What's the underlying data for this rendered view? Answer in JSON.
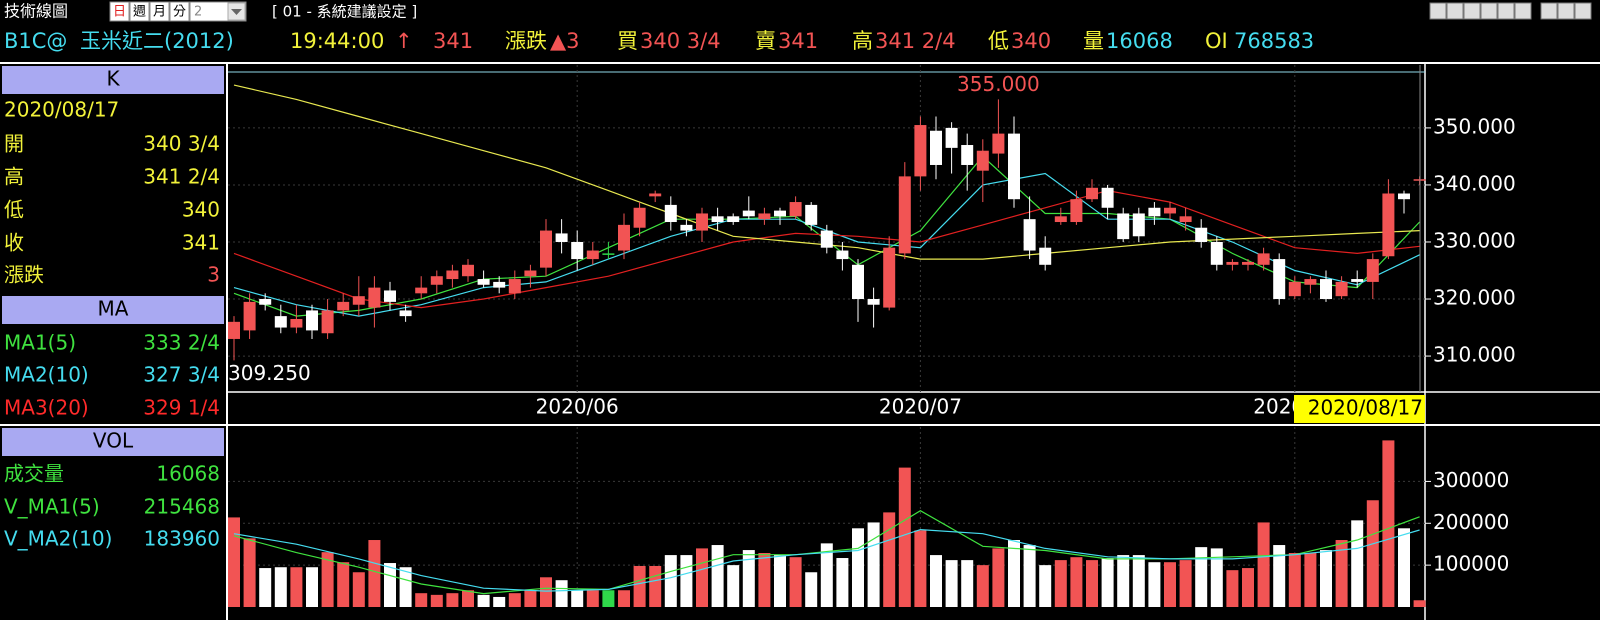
{
  "header": {
    "title": "技術線圖",
    "periods": [
      "日",
      "週",
      "月",
      "分"
    ],
    "period_count": "2",
    "settings": "[ 01 - 系統建議設定 ]"
  },
  "quote": {
    "symbol": "B1C@",
    "name": "玉米近二(2012)",
    "time": "19:44:00",
    "arrow": "↑",
    "last": "341",
    "change_label": "漲跌",
    "change": "▲3",
    "bid_label": "買",
    "bid": "340 3/4",
    "ask_label": "賣",
    "ask": "341",
    "high_label": "高",
    "high": "341 2/4",
    "low_label": "低",
    "low": "340",
    "volume_label": "量",
    "volume": "16068",
    "oi_label": "OI",
    "oi": "768583"
  },
  "panel": {
    "k": {
      "header": "K",
      "date": "2020/08/17",
      "rows": [
        [
          "開",
          "340 3/4"
        ],
        [
          "高",
          "341 2/4"
        ],
        [
          "低",
          "340"
        ],
        [
          "收",
          "341"
        ],
        [
          "漲跌",
          "3"
        ]
      ]
    },
    "ma": {
      "header": "MA",
      "rows": [
        [
          "MA1(5)",
          "333 2/4"
        ],
        [
          "MA2(10)",
          "327 3/4"
        ],
        [
          "MA3(20)",
          "329 1/4"
        ]
      ]
    },
    "vol": {
      "header": "VOL",
      "rows": [
        [
          "成交量",
          "16068"
        ],
        [
          "V_MA1(5)",
          "215468"
        ],
        [
          "V_MA2(10)",
          "183960"
        ]
      ]
    }
  },
  "chart_data": [
    {
      "type": "candlestick",
      "categories": [
        null,
        null,
        null,
        null,
        null,
        null,
        null,
        null,
        null,
        null,
        null,
        null,
        null,
        null,
        null,
        null,
        null,
        null,
        null,
        null,
        null,
        null,
        "2020/06",
        null,
        null,
        null,
        null,
        null,
        null,
        null,
        null,
        null,
        null,
        null,
        null,
        null,
        null,
        null,
        null,
        null,
        null,
        null,
        null,
        null,
        "2020/07",
        null,
        null,
        null,
        null,
        null,
        null,
        null,
        null,
        null,
        null,
        null,
        null,
        null,
        null,
        null,
        null,
        null,
        null,
        null,
        null,
        null,
        null,
        null,
        "2020/08",
        null,
        null,
        null,
        null,
        null,
        null,
        null,
        null
      ],
      "open": [
        313,
        314.5,
        320,
        317,
        315,
        318,
        314,
        318,
        319,
        318.5,
        321.5,
        318,
        321,
        322.5,
        323.5,
        324,
        323.5,
        323,
        321,
        324,
        325.5,
        331.5,
        330,
        327,
        328,
        328.5,
        332.5,
        338,
        336.5,
        333,
        332,
        334.5,
        334.5,
        335.5,
        334,
        335.5,
        334.5,
        336.5,
        332,
        328.5,
        326,
        320,
        318.5,
        328,
        341.5,
        349.5,
        350,
        347,
        342.5,
        345.5,
        349,
        334,
        329,
        333.5,
        333.5,
        337.5,
        339.5,
        335,
        335,
        336,
        335,
        333.5,
        332.5,
        330,
        326,
        326,
        326,
        327,
        320.5,
        322.5,
        323.5,
        320.5,
        323.5,
        323,
        327.5,
        338.5,
        340.75
      ],
      "high": [
        317,
        321,
        321,
        319,
        319,
        319,
        320,
        321,
        324,
        324,
        323,
        319,
        324,
        325,
        326,
        327,
        325,
        324,
        325,
        326,
        334,
        334,
        332,
        330,
        330,
        335,
        337,
        339,
        338,
        334,
        336,
        336,
        335,
        338,
        336,
        336,
        338,
        337,
        333,
        330,
        327,
        322,
        331,
        344,
        352,
        352,
        351,
        349,
        348,
        355,
        352,
        338,
        331,
        336,
        339,
        341,
        340,
        336,
        336,
        337,
        337,
        336,
        334,
        331,
        327,
        327,
        329,
        328,
        324,
        324,
        325,
        324,
        325,
        328,
        341,
        339,
        341.5
      ],
      "low": [
        309.25,
        313,
        318,
        314,
        314,
        313,
        313,
        317,
        317,
        315,
        318,
        316,
        320,
        321,
        322,
        323,
        322,
        321,
        320,
        322,
        324,
        328,
        325,
        326,
        327,
        327,
        331,
        337,
        332,
        331,
        330,
        332,
        333,
        334,
        333,
        333,
        334,
        332,
        328,
        325,
        316,
        315,
        318,
        327,
        339,
        341,
        342,
        339,
        337,
        343,
        336,
        327,
        325,
        333,
        333,
        337,
        334,
        330,
        330,
        333,
        334,
        332,
        329,
        325,
        325,
        325,
        325,
        319,
        320,
        321,
        319.5,
        320,
        322,
        320,
        327,
        335,
        340
      ],
      "close": [
        316,
        319.5,
        319,
        315,
        316.5,
        314.5,
        318,
        319.5,
        320.5,
        322,
        319.5,
        317,
        322,
        324,
        325,
        326,
        322.5,
        322,
        323.5,
        325,
        332,
        330,
        327,
        328.5,
        328,
        333,
        336,
        338.5,
        333.5,
        332,
        335,
        333.5,
        333.5,
        334.5,
        335,
        334.5,
        337,
        333,
        329,
        327,
        320,
        319,
        329,
        341.5,
        350.5,
        343.5,
        346.5,
        343.5,
        346,
        349,
        337.5,
        328.5,
        326,
        334.5,
        337.5,
        339.5,
        336,
        330.5,
        331,
        334.5,
        336,
        334.5,
        330,
        326,
        326.5,
        326.5,
        328,
        320,
        323,
        323.5,
        320,
        323,
        323,
        327,
        338.5,
        337.5,
        341
      ],
      "colors": {
        "up": "#f25454",
        "down": "#ffffff",
        "flat": "#2fd84a"
      },
      "lines": [
        {
          "color": "#3fe23f",
          "x": [
            0,
            4,
            8,
            12,
            16,
            20,
            24,
            28,
            32,
            36,
            40,
            44,
            48,
            52,
            56,
            60,
            64,
            68,
            72,
            76
          ],
          "values": [
            321,
            317,
            318,
            320,
            323.5,
            324,
            329,
            334,
            334,
            334.5,
            326,
            332,
            345,
            335,
            335,
            334,
            328,
            323,
            322,
            333.5
          ]
        },
        {
          "color": "#45dcef",
          "x": [
            0,
            4,
            8,
            12,
            16,
            20,
            24,
            28,
            32,
            36,
            40,
            44,
            48,
            52,
            56,
            60,
            64,
            68,
            72,
            76
          ],
          "values": [
            322,
            319,
            317,
            319,
            322,
            323,
            327,
            331,
            334,
            334,
            330,
            329,
            340,
            342,
            334,
            334,
            330,
            325,
            322.5,
            327.75
          ]
        },
        {
          "color": "#e22020",
          "x": [
            0,
            4,
            8,
            12,
            16,
            20,
            24,
            28,
            32,
            36,
            40,
            44,
            48,
            52,
            56,
            60,
            64,
            68,
            72,
            76
          ],
          "values": [
            328,
            324,
            320,
            318.5,
            320,
            322,
            324,
            327,
            330,
            331.5,
            331,
            330,
            333,
            336,
            339,
            337,
            333,
            329,
            328,
            329.25
          ]
        },
        {
          "color": "#e8e850",
          "x": [
            0,
            4,
            8,
            12,
            16,
            20,
            24,
            28,
            32,
            36,
            40,
            44,
            48,
            52,
            56,
            60,
            64,
            68,
            72,
            76
          ],
          "values": [
            357.5,
            355,
            352,
            349,
            346,
            343,
            339,
            335,
            331,
            330,
            329,
            327,
            327,
            328,
            329,
            330,
            330.5,
            331,
            331.5,
            332
          ]
        }
      ],
      "annotations": [
        {
          "text": "355.000",
          "x": 49,
          "y": 355,
          "position": "above",
          "color": "#f25454"
        },
        {
          "text": "309.250",
          "x": 0,
          "y": 309.25,
          "position": "below",
          "color": "#ffffff"
        }
      ],
      "cursor_label": "2020/08/17",
      "ylim": [
        303.7,
        359.8
      ],
      "yticks": [
        {
          "value": 310,
          "label": "310.000"
        },
        {
          "value": 320,
          "label": "320.000"
        },
        {
          "value": 330,
          "label": "330.000"
        },
        {
          "value": 340,
          "label": "340.000"
        },
        {
          "value": 350,
          "label": "350.000"
        }
      ],
      "grid": true
    },
    {
      "type": "bar",
      "values": [
        214000,
        164000,
        93000,
        95000,
        95000,
        95000,
        131000,
        107000,
        83000,
        160000,
        105000,
        95000,
        33000,
        29000,
        33000,
        40000,
        29000,
        24000,
        33000,
        40000,
        71000,
        64000,
        40000,
        40000,
        40000,
        40000,
        98000,
        98000,
        124000,
        124000,
        140000,
        148000,
        100000,
        136000,
        129000,
        124000,
        119000,
        83000,
        152000,
        117000,
        188000,
        202000,
        226000,
        333000,
        183000,
        124000,
        112000,
        112000,
        100000,
        140000,
        160000,
        148000,
        100000,
        112000,
        119000,
        112000,
        117000,
        124000,
        124000,
        107000,
        107000,
        112000,
        143000,
        140000,
        88000,
        93000,
        202000,
        148000,
        129000,
        129000,
        136000,
        160000,
        207000,
        255000,
        398000,
        188000,
        16068
      ],
      "lines": [
        {
          "color": "#3fe23f",
          "x": [
            0,
            4,
            8,
            12,
            16,
            20,
            24,
            28,
            32,
            36,
            40,
            44,
            48,
            52,
            56,
            60,
            64,
            68,
            72,
            76
          ],
          "values": [
            170000,
            130000,
            95000,
            55000,
            32000,
            45000,
            42000,
            85000,
            125000,
            125000,
            140000,
            230000,
            145000,
            135000,
            115000,
            115000,
            120000,
            125000,
            160000,
            215468
          ]
        },
        {
          "color": "#45dcef",
          "x": [
            0,
            4,
            8,
            12,
            16,
            20,
            24,
            28,
            32,
            36,
            40,
            44,
            48,
            52,
            56,
            60,
            64,
            68,
            72,
            76
          ],
          "values": [
            175000,
            150000,
            115000,
            75000,
            45000,
            38000,
            42000,
            70000,
            110000,
            125000,
            135000,
            185000,
            175000,
            140000,
            120000,
            115000,
            115000,
            125000,
            140000,
            183960
          ]
        }
      ],
      "ylim": [
        0,
        430000
      ],
      "yticks": [
        100000,
        200000,
        300000
      ],
      "grid": true
    }
  ]
}
